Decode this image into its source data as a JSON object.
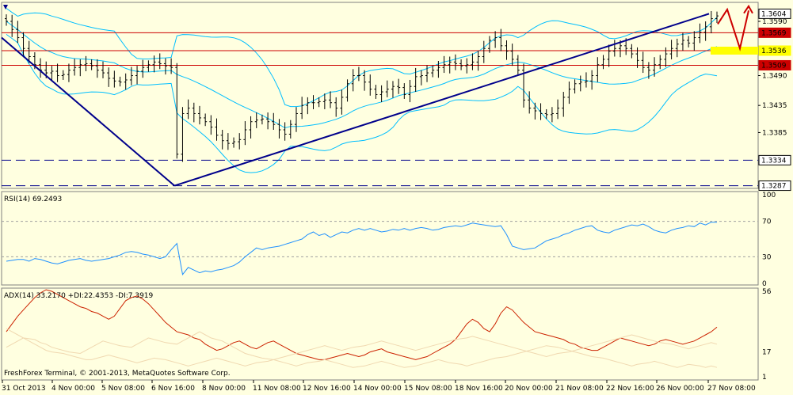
{
  "colors": {
    "background": "#ffffe0",
    "axis": "#000000",
    "price_bars": "#000000",
    "bollinger": "#00bfff",
    "trendline": "#00008b",
    "resistance": "#cc0000",
    "support_dashed": "#00008b",
    "yellow_zone": "#ffff00",
    "forecast_arrow": "#cc0000",
    "rsi_line": "#1e90ff",
    "adx_line": "#cc2200",
    "di_plus": "#f0d8b0",
    "di_minus": "#f0d8b0"
  },
  "chart_data": [
    {
      "type": "ohlc",
      "title": "",
      "ylim": [
        1.3282,
        1.3625
      ],
      "y_ticks": [
        "1.3590",
        "1.3490",
        "1.3435",
        "1.3385"
      ],
      "price_levels": [
        {
          "label": "1.3604",
          "value": 1.3604,
          "style": "current"
        },
        {
          "label": "1.3569",
          "value": 1.3569,
          "style": "resistance"
        },
        {
          "label": "1.3536",
          "value": 1.3536,
          "style": "highlight"
        },
        {
          "label": "1.3509",
          "value": 1.3509,
          "style": "resistance"
        },
        {
          "label": "1.3334",
          "value": 1.3334,
          "style": "dashed"
        },
        {
          "label": "1.3287",
          "value": 1.3287,
          "style": "dashed"
        }
      ],
      "x_labels": [
        "31 Oct 2013",
        "4 Nov 00:00",
        "5 Nov 08:00",
        "6 Nov 16:00",
        "8 Nov 00:00",
        "11 Nov 08:00",
        "12 Nov 16:00",
        "14 Nov 00:00",
        "15 Nov 08:00",
        "18 Nov 16:00",
        "20 Nov 00:00",
        "21 Nov 08:00",
        "22 Nov 16:00",
        "26 Nov 00:00",
        "27 Nov 08:00"
      ],
      "close_series": [
        1.359,
        1.3575,
        1.356,
        1.354,
        1.3525,
        1.351,
        1.35,
        1.3495,
        1.3498,
        1.349,
        1.3492,
        1.35,
        1.3505,
        1.351,
        1.3512,
        1.3508,
        1.35,
        1.3495,
        1.3485,
        1.348,
        1.3478,
        1.3482,
        1.349,
        1.3498,
        1.3505,
        1.351,
        1.3515,
        1.3512,
        1.3508,
        1.3505,
        1.3345,
        1.342,
        1.343,
        1.342,
        1.3412,
        1.3405,
        1.3395,
        1.338,
        1.337,
        1.3365,
        1.3368,
        1.3372,
        1.339,
        1.3405,
        1.3408,
        1.341,
        1.3405,
        1.34,
        1.339,
        1.3382,
        1.34,
        1.342,
        1.3435,
        1.344,
        1.344,
        1.3442,
        1.3445,
        1.344,
        1.343,
        1.345,
        1.3475,
        1.349,
        1.349,
        1.3478,
        1.3465,
        1.3455,
        1.346,
        1.3465,
        1.347,
        1.3468,
        1.3455,
        1.347,
        1.3488,
        1.349,
        1.3495,
        1.35,
        1.3505,
        1.351,
        1.3515,
        1.3512,
        1.3508,
        1.351,
        1.3515,
        1.3525,
        1.354,
        1.3555,
        1.356,
        1.3545,
        1.3535,
        1.352,
        1.35,
        1.3445,
        1.343,
        1.3425,
        1.342,
        1.3418,
        1.342,
        1.343,
        1.345,
        1.3465,
        1.3475,
        1.3478,
        1.348,
        1.349,
        1.351,
        1.352,
        1.3535,
        1.354,
        1.3545,
        1.354,
        1.353,
        1.3518,
        1.3505,
        1.35,
        1.351,
        1.352,
        1.353,
        1.354,
        1.3548,
        1.3555,
        1.355,
        1.356,
        1.357,
        1.358,
        1.3595,
        1.36
      ],
      "annotations": [
        "Descending trendline from chart start to 8 Nov low",
        "Ascending trendline from 8 Nov low to 27 Nov high",
        "Red zigzag forecast arrow pointing down then up at right edge"
      ]
    },
    {
      "type": "line",
      "title": "RSI(14) 69.2493",
      "ylim": [
        0,
        100
      ],
      "y_ticks": [
        100,
        70,
        30,
        0
      ],
      "levels": [
        70,
        30
      ],
      "series": [
        {
          "name": "RSI(14) 69.2493",
          "values": [
            25,
            26,
            27,
            27,
            25,
            28,
            27,
            25,
            23,
            22,
            24,
            26,
            27,
            28,
            26,
            25,
            27,
            28,
            30,
            32,
            35,
            36,
            35,
            33,
            32,
            30,
            28,
            30,
            38,
            45,
            10,
            18,
            15,
            12,
            14,
            13,
            15,
            16,
            18,
            20,
            24,
            30,
            35,
            40,
            38,
            40,
            42,
            44,
            46,
            48,
            50,
            55,
            58,
            54,
            56,
            52,
            55,
            58,
            57,
            60,
            62,
            60,
            62,
            60,
            58,
            59,
            61,
            60,
            62,
            60,
            62,
            63,
            62,
            60,
            61,
            63,
            65,
            64,
            66,
            68,
            67,
            66,
            65,
            64,
            65,
            55,
            42,
            40,
            38,
            39,
            40,
            44,
            48,
            50,
            52,
            55,
            57,
            60,
            62,
            64,
            65,
            60,
            58,
            57,
            60,
            62,
            66,
            65,
            67,
            64,
            60,
            58,
            57,
            60,
            62,
            63,
            65,
            64,
            68,
            66,
            69,
            69
          ]
        }
      ]
    },
    {
      "type": "line",
      "title": "ADX(14) 33.2170 +DI:22.4353 -DI:7.3919",
      "ylim": [
        1,
        56
      ],
      "y_ticks": [
        56,
        17,
        1
      ],
      "series": [
        {
          "name": "ADX(14) 33.2170",
          "values": [
            30,
            35,
            40,
            44,
            48,
            52,
            55,
            57,
            56,
            54,
            52,
            50,
            48,
            46,
            45,
            43,
            42,
            40,
            38,
            40,
            45,
            50,
            52,
            53,
            51,
            48,
            44,
            40,
            36,
            33,
            30,
            28,
            26,
            25,
            22,
            20,
            18,
            19,
            21,
            23,
            24,
            22,
            20,
            19,
            21,
            23,
            24,
            22,
            20,
            18,
            16,
            15,
            14,
            13,
            12,
            12,
            13,
            14,
            15,
            16,
            15,
            14,
            15,
            17,
            18,
            19,
            17,
            16,
            15,
            14,
            13,
            12,
            13,
            14,
            16,
            18,
            20,
            22,
            25,
            30,
            35,
            38,
            36,
            32,
            30,
            35,
            42,
            46,
            44,
            40,
            36,
            33,
            30,
            28,
            27,
            26,
            25,
            23,
            22,
            20,
            19,
            18,
            18,
            20,
            22,
            24,
            26,
            25,
            24,
            23,
            22,
            21,
            22,
            24,
            25,
            24,
            23,
            22,
            23,
            24,
            26,
            28,
            30,
            33
          ]
        },
        {
          "name": "+DI:22.4353",
          "values": [
            32,
            30,
            28,
            26,
            24,
            22,
            20,
            18,
            17,
            16,
            15,
            14,
            13,
            12,
            12,
            13,
            14,
            15,
            14,
            13,
            12,
            11,
            10,
            11,
            12,
            13,
            12,
            11,
            10,
            9,
            8,
            9,
            10,
            11,
            12,
            13,
            12,
            11,
            10,
            9,
            8,
            9,
            10,
            11,
            12,
            13,
            14,
            15,
            16,
            17,
            18,
            19,
            20,
            21,
            20,
            19,
            18,
            19,
            20,
            21,
            22,
            23,
            24,
            23,
            22,
            21,
            20,
            19,
            18,
            19,
            20,
            21,
            22,
            23,
            24,
            25,
            26,
            27,
            26,
            25,
            24,
            23,
            22,
            21,
            20,
            19,
            18,
            17,
            16,
            15,
            14,
            15,
            16,
            17,
            18,
            19,
            20,
            21,
            22,
            23,
            24,
            25,
            26,
            27,
            28,
            27,
            26,
            25,
            24,
            23,
            22,
            21,
            20,
            19,
            20,
            21,
            22,
            23,
            22
          ]
        },
        {
          "name": "-DI:7.3919",
          "values": [
            20,
            22,
            24,
            26,
            25,
            23,
            22,
            20,
            19,
            18,
            17,
            16,
            18,
            20,
            22,
            24,
            23,
            22,
            21,
            20,
            22,
            24,
            26,
            25,
            24,
            23,
            22,
            24,
            26,
            28,
            30,
            28,
            26,
            24,
            22,
            20,
            18,
            16,
            15,
            14,
            13,
            12,
            11,
            10,
            9,
            8,
            9,
            10,
            11,
            12,
            11,
            10,
            9,
            8,
            7,
            8,
            9,
            10,
            11,
            10,
            9,
            8,
            7,
            8,
            9,
            10,
            11,
            12,
            11,
            10,
            9,
            8,
            9,
            10,
            11,
            12,
            13,
            14,
            15,
            16,
            17,
            18,
            19,
            20,
            21,
            20,
            19,
            18,
            17,
            16,
            15,
            14,
            13,
            12,
            11,
            10,
            9,
            8,
            9,
            10,
            11,
            10,
            9,
            8,
            7,
            8,
            9,
            8,
            7,
            8,
            7
          ]
        }
      ]
    }
  ],
  "watermark": "FreshForex Terminal, © 2001-2013, MetaQuotes Software Corp."
}
